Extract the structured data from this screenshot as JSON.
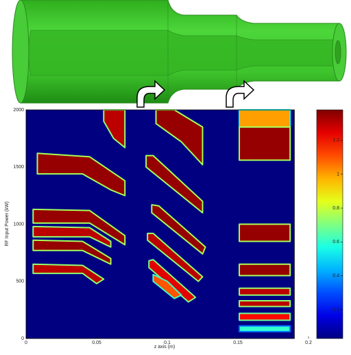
{
  "chart_data": {
    "type": "heatmap",
    "x_label": "z axis (m)",
    "y_label": "RF Input Power (kW)",
    "xlim": [
      0,
      0.2
    ],
    "xticks": [
      0,
      0.05,
      0.1,
      0.15,
      0.2
    ],
    "ylim": [
      0,
      2000
    ],
    "yticks": [
      0,
      500,
      1000,
      1500,
      2000
    ],
    "data_xlim": [
      0,
      0.19
    ],
    "clim": [
      0.03,
      1.38
    ],
    "cticks": [
      0.2,
      0.4,
      0.6,
      0.8,
      1,
      1.2
    ],
    "colormap": "jet",
    "regions": [
      {
        "x": [
          0.008,
          0.045,
          0.07,
          0.07,
          0.06,
          0.04,
          0.008
        ],
        "y": [
          1620,
          1590,
          1380,
          1250,
          1300,
          1440,
          1440
        ],
        "value": 1.35
      },
      {
        "x": [
          0.055,
          0.07,
          0.07,
          0.062,
          0.055
        ],
        "y": [
          2000,
          2000,
          1670,
          1750,
          1900
        ],
        "value": 1.3
      },
      {
        "x": [
          0.005,
          0.045,
          0.07,
          0.07,
          0.045,
          0.005
        ],
        "y": [
          1130,
          1120,
          900,
          820,
          1010,
          1010
        ],
        "value": 1.35
      },
      {
        "x": [
          0.005,
          0.045,
          0.06,
          0.06,
          0.045,
          0.005
        ],
        "y": [
          980,
          970,
          850,
          800,
          890,
          890
        ],
        "value": 1.3
      },
      {
        "x": [
          0.005,
          0.04,
          0.06,
          0.06,
          0.04,
          0.005
        ],
        "y": [
          860,
          850,
          700,
          650,
          770,
          770
        ],
        "value": 1.35
      },
      {
        "x": [
          0.005,
          0.04,
          0.055,
          0.05,
          0.04,
          0.005
        ],
        "y": [
          650,
          640,
          520,
          480,
          570,
          570
        ],
        "value": 1.3
      },
      {
        "x": [
          0.092,
          0.105,
          0.125,
          0.125,
          0.11,
          0.092
        ],
        "y": [
          2000,
          2000,
          1850,
          1520,
          1720,
          1880
        ],
        "value": 1.35
      },
      {
        "x": [
          0.085,
          0.09,
          0.125,
          0.125,
          0.085
        ],
        "y": [
          1600,
          1600,
          1200,
          1100,
          1500
        ],
        "value": 1.35
      },
      {
        "x": [
          0.089,
          0.094,
          0.127,
          0.125,
          0.089
        ],
        "y": [
          1170,
          1160,
          800,
          740,
          1100
        ],
        "value": 1.35
      },
      {
        "x": [
          0.086,
          0.09,
          0.125,
          0.122,
          0.086
        ],
        "y": [
          920,
          920,
          540,
          500,
          860
        ],
        "value": 1.3
      },
      {
        "x": [
          0.087,
          0.09,
          0.12,
          0.115,
          0.087
        ],
        "y": [
          680,
          690,
          360,
          320,
          620
        ],
        "value": 1.25
      },
      {
        "x": [
          0.09,
          0.1,
          0.11,
          0.105,
          0.09
        ],
        "y": [
          560,
          500,
          380,
          350,
          500
        ],
        "value": 1.1
      },
      {
        "x": [
          0.151,
          0.187,
          0.187,
          0.151
        ],
        "y": [
          2000,
          2000,
          1850,
          1850
        ],
        "value": 1.0
      },
      {
        "x": [
          0.151,
          0.187,
          0.187,
          0.151
        ],
        "y": [
          1850,
          1850,
          1560,
          1560
        ],
        "value": 1.35
      },
      {
        "x": [
          0.151,
          0.187,
          0.187,
          0.151
        ],
        "y": [
          1000,
          1000,
          850,
          850
        ],
        "value": 1.35
      },
      {
        "x": [
          0.151,
          0.187,
          0.187,
          0.151
        ],
        "y": [
          650,
          650,
          550,
          550
        ],
        "value": 1.35
      },
      {
        "x": [
          0.151,
          0.187,
          0.187,
          0.151
        ],
        "y": [
          440,
          440,
          380,
          380
        ],
        "value": 1.3
      },
      {
        "x": [
          0.151,
          0.187,
          0.187,
          0.151
        ],
        "y": [
          330,
          330,
          280,
          280
        ],
        "value": 1.3
      },
      {
        "x": [
          0.151,
          0.187,
          0.187,
          0.151
        ],
        "y": [
          220,
          220,
          160,
          160
        ],
        "value": 1.2
      },
      {
        "x": [
          0.151,
          0.187,
          0.187,
          0.151
        ],
        "y": [
          110,
          110,
          60,
          60
        ],
        "value": 0.6
      }
    ]
  }
}
